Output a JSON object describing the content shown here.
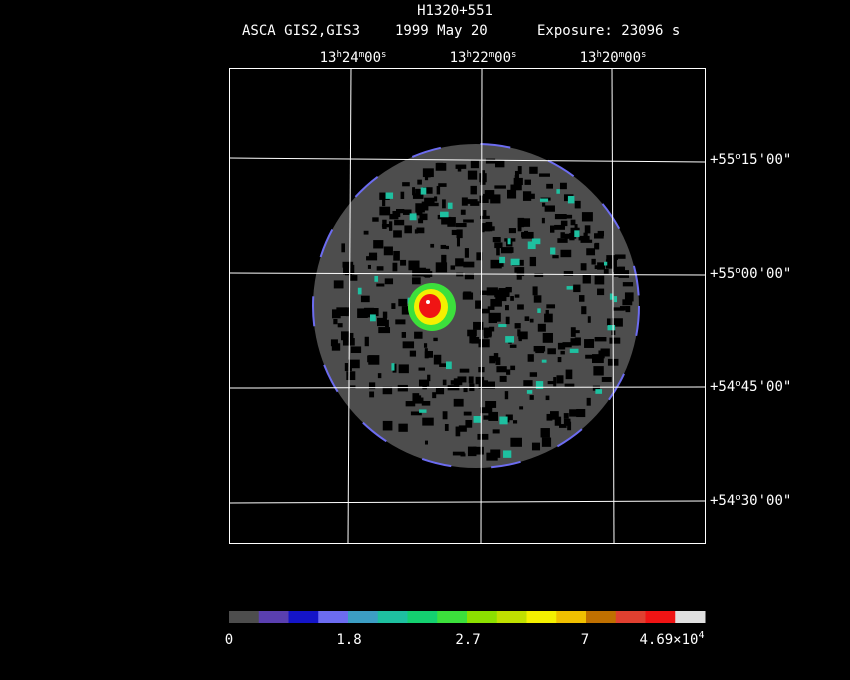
{
  "header": {
    "title": "H1320+551",
    "instrument": "ASCA GIS2,GIS3",
    "date": "1999 May 20",
    "exposure": "Exposure: 23096 s"
  },
  "ra_labels": [
    [
      "13",
      "h",
      "24",
      "m",
      "00",
      "s"
    ],
    [
      "13",
      "h",
      "22",
      "m",
      "00",
      "s"
    ],
    [
      "13",
      "h",
      "20",
      "m",
      "00",
      "s"
    ]
  ],
  "dec_labels": [
    [
      "+55",
      "o",
      "15",
      "'",
      "00",
      "\""
    ],
    [
      "+55",
      "o",
      "00",
      "'",
      "00",
      "\""
    ],
    [
      "+54",
      "o",
      "45",
      "'",
      "00",
      "\""
    ],
    [
      "+54",
      "o",
      "30",
      "'",
      "00",
      "\""
    ]
  ],
  "colorbar": {
    "colors": [
      "#4d4d4d",
      "#5a3fb0",
      "#1414c8",
      "#6c6cf0",
      "#3c9ec4",
      "#1ec0a0",
      "#14d070",
      "#3ce03c",
      "#8ce000",
      "#c0e000",
      "#f4f000",
      "#f0c000",
      "#c07000",
      "#e04030",
      "#f01414",
      "#e0e0e0"
    ],
    "labels": [
      [
        "0"
      ],
      [
        "1.8"
      ],
      [
        "2.7"
      ],
      [
        "7"
      ],
      [
        "4.69×10",
        "4"
      ]
    ]
  }
}
